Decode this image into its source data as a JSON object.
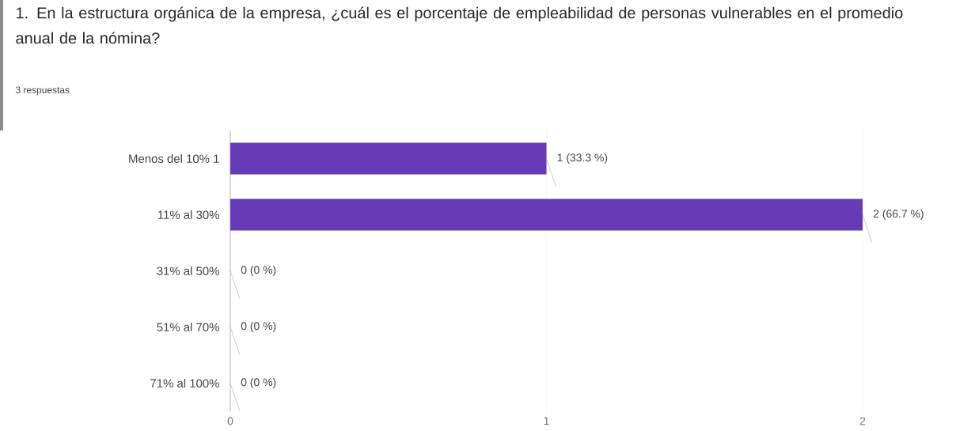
{
  "chart_data": {
    "type": "bar",
    "orientation": "horizontal",
    "title": "1.   En la estructura orgánica de la empresa, ¿cuál es el porcentaje de empleabilidad de personas vulnerables en el promedio anual de la nómina?",
    "subtitle": "3 respuestas",
    "categories": [
      "Menos del 10% 1",
      "11% al 30%",
      "31% al 50%",
      "51% al 70%",
      "71% al 100%"
    ],
    "values": [
      1,
      2,
      0,
      0,
      0
    ],
    "value_labels": [
      "1 (33.3 %)",
      "2 (66.7 %)",
      "0 (0 %)",
      "0 (0 %)",
      "0 (0 %)"
    ],
    "color": "#673ab7",
    "xlim": [
      0,
      2
    ],
    "xticks": [
      0,
      1,
      2
    ],
    "grid": "x"
  }
}
